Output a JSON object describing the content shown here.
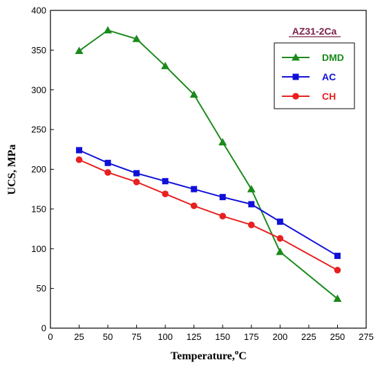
{
  "chart_data": {
    "type": "line",
    "annotation": "AZ31-2Ca",
    "xlabel_main": "Temperature,",
    "xlabel_sup": "o",
    "xlabel_unit": "C",
    "ylabel": "UCS, MPa",
    "xlim": [
      0,
      275
    ],
    "ylim": [
      0,
      400
    ],
    "xticks": [
      0,
      25,
      50,
      75,
      100,
      125,
      150,
      175,
      200,
      225,
      250,
      275
    ],
    "yticks": [
      0,
      50,
      100,
      150,
      200,
      250,
      300,
      350,
      400
    ],
    "grid": false,
    "legend_position": "top-right",
    "series": [
      {
        "name": "DMD",
        "color": "#1a8a1a",
        "marker": "triangle",
        "x": [
          25,
          50,
          75,
          100,
          125,
          150,
          175,
          200,
          250
        ],
        "y": [
          349,
          375,
          364,
          330,
          294,
          234,
          175,
          96,
          37
        ]
      },
      {
        "name": "AC",
        "color": "#1010d8",
        "marker": "square",
        "x": [
          25,
          50,
          75,
          100,
          125,
          150,
          175,
          200,
          250
        ],
        "y": [
          224,
          208,
          195,
          185,
          175,
          165,
          156,
          134,
          91
        ]
      },
      {
        "name": "CH",
        "color": "#e82020",
        "marker": "circle",
        "x": [
          25,
          50,
          75,
          100,
          125,
          150,
          175,
          200,
          250
        ],
        "y": [
          212,
          196,
          184,
          169,
          154,
          141,
          130,
          113,
          73
        ]
      }
    ]
  }
}
